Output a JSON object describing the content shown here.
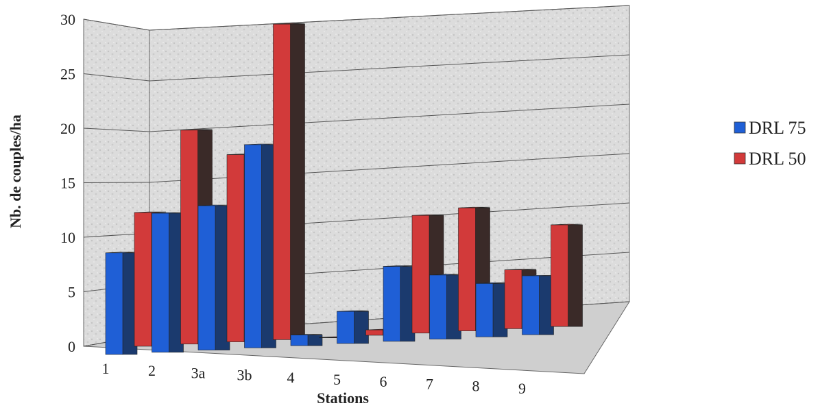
{
  "chart_data": {
    "type": "bar",
    "categories": [
      "1",
      "2",
      "3a",
      "3b",
      "4",
      "5",
      "6",
      "7",
      "8",
      "9"
    ],
    "series": [
      {
        "name": "DRL 75",
        "values": [
          9.5,
          13,
          13.5,
          19,
          1,
          3,
          7,
          6,
          5,
          5.5
        ]
      },
      {
        "name": "DRL 50",
        "values": [
          12.5,
          20,
          17.5,
          29.5,
          0,
          0.5,
          11,
          11.5,
          5.5,
          9.5
        ]
      }
    ],
    "title": "",
    "xlabel": "Stations",
    "ylabel": "Nb. de couples/ha",
    "ylim": [
      0,
      30
    ],
    "yticks": [
      "0",
      "5",
      "10",
      "15",
      "20",
      "25",
      "30"
    ],
    "grid": true,
    "legend_position": "right",
    "colors": {
      "DRL 75": "#1f5fd6",
      "DRL 50": "#d23a3a"
    },
    "style": "3d-clustered"
  }
}
